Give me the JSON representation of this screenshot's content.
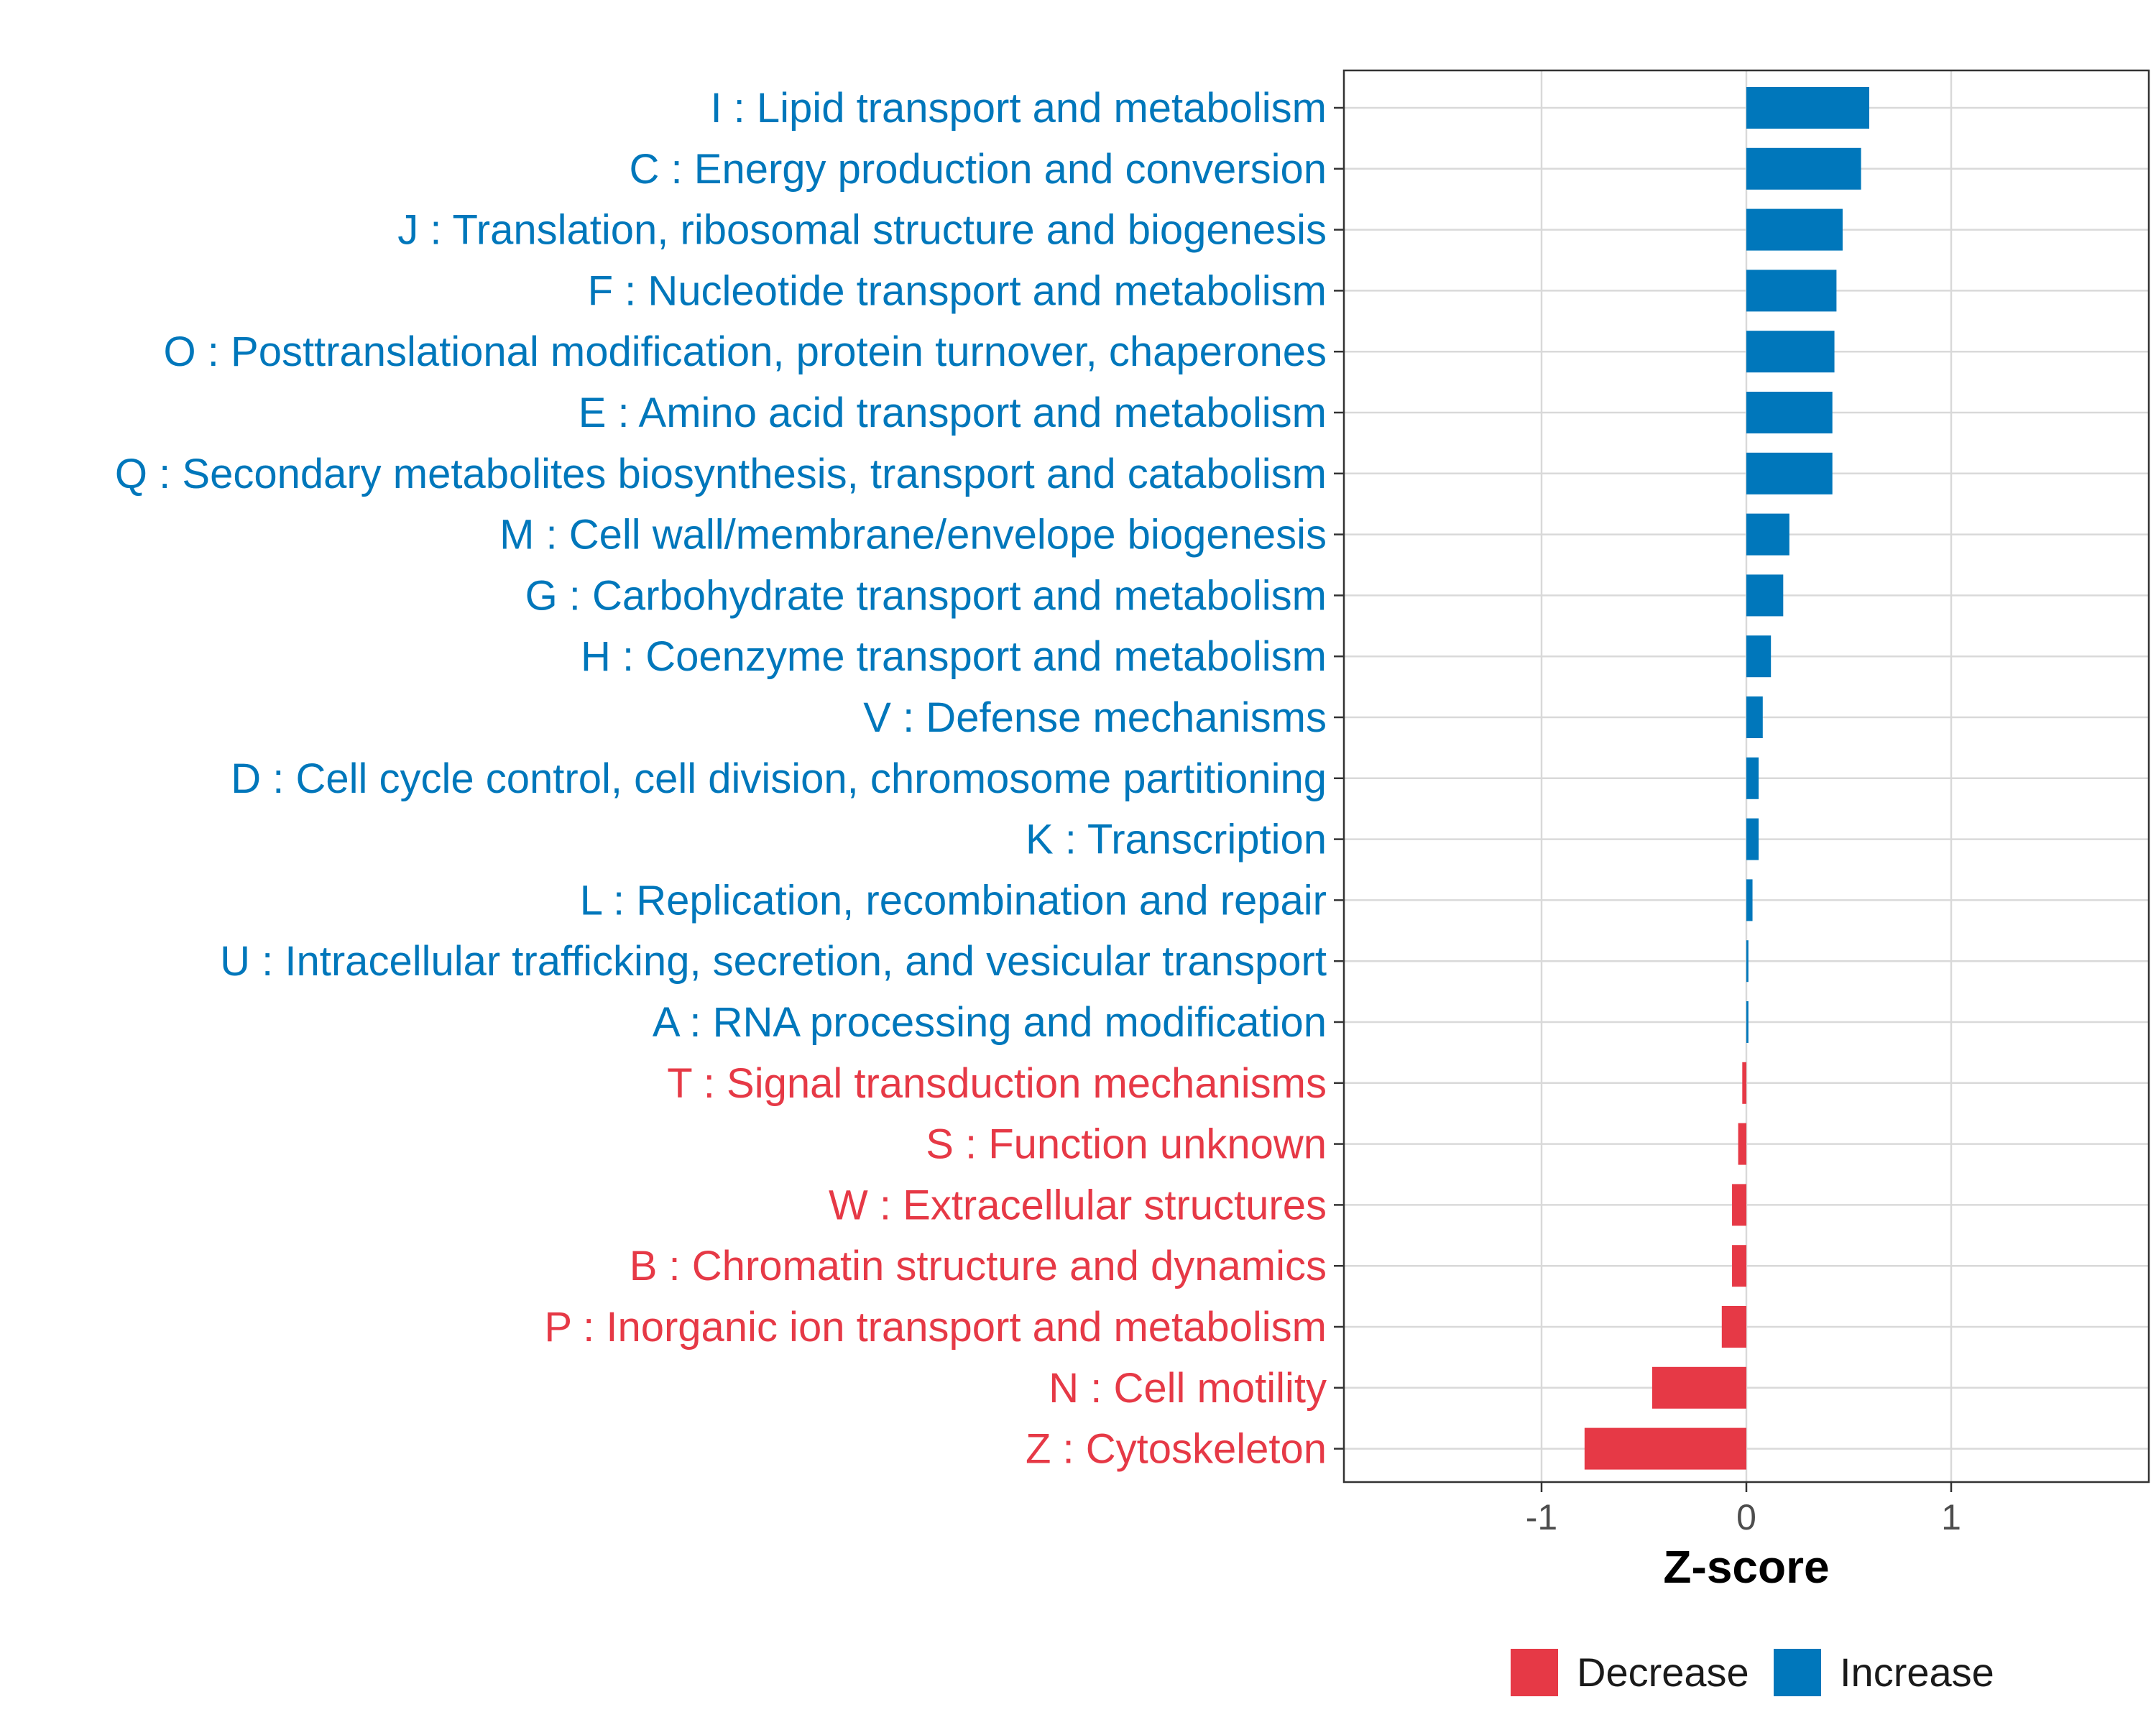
{
  "chart_data": {
    "type": "bar",
    "orientation": "horizontal",
    "title": "",
    "xlabel": "Z-score",
    "ylabel": "",
    "xlim": [
      -1.97,
      1.97
    ],
    "xticks": [
      -1,
      0,
      1
    ],
    "xtick_labels": [
      "-1",
      "0",
      "1"
    ],
    "grid": true,
    "legend_position": "bottom",
    "colors": {
      "Decrease": "#e63946",
      "Increase": "#0077bb"
    },
    "legend": [
      {
        "label": "Decrease",
        "color": "#e63946"
      },
      {
        "label": "Increase",
        "color": "#0077bb"
      }
    ],
    "categories": [
      "I : Lipid transport and metabolism",
      "C : Energy production and conversion",
      "J : Translation, ribosomal structure and biogenesis",
      "F : Nucleotide transport and metabolism",
      "O : Posttranslational modification, protein turnover, chaperones",
      "E : Amino acid transport and metabolism",
      "Q : Secondary metabolites biosynthesis, transport and catabolism",
      "M : Cell wall/membrane/envelope biogenesis",
      "G : Carbohydrate transport and metabolism",
      "H : Coenzyme transport and metabolism",
      "V : Defense mechanisms",
      "D : Cell cycle control, cell division, chromosome partitioning",
      "K : Transcription",
      "L : Replication, recombination and repair",
      "U : Intracellular trafficking, secretion, and vesicular transport",
      "A : RNA processing and modification",
      "T : Signal transduction mechanisms",
      "S : Function unknown",
      "W : Extracellular structures",
      "B : Chromatin structure and dynamics",
      "P : Inorganic ion transport and metabolism",
      "N : Cell motility",
      "Z : Cytoskeleton"
    ],
    "values": [
      0.6,
      0.56,
      0.47,
      0.44,
      0.43,
      0.42,
      0.42,
      0.21,
      0.18,
      0.12,
      0.08,
      0.06,
      0.06,
      0.03,
      0.01,
      0.01,
      -0.02,
      -0.04,
      -0.07,
      -0.07,
      -0.12,
      -0.46,
      -0.79
    ],
    "direction": [
      "Increase",
      "Increase",
      "Increase",
      "Increase",
      "Increase",
      "Increase",
      "Increase",
      "Increase",
      "Increase",
      "Increase",
      "Increase",
      "Increase",
      "Increase",
      "Increase",
      "Increase",
      "Increase",
      "Decrease",
      "Decrease",
      "Decrease",
      "Decrease",
      "Decrease",
      "Decrease",
      "Decrease"
    ]
  }
}
